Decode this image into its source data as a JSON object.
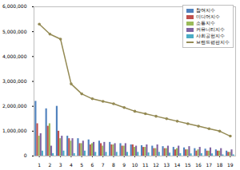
{
  "chart_data": {
    "type": "bar",
    "categories": [
      "1",
      "2",
      "3",
      "4",
      "5",
      "6",
      "7",
      "8",
      "9",
      "10",
      "11",
      "12",
      "13",
      "14",
      "15",
      "16",
      "17",
      "18",
      "19"
    ],
    "series": [
      {
        "name": "참여지수",
        "type": "bar",
        "color": "#4f81bd",
        "values": [
          2200000,
          1900000,
          2000000,
          800000,
          700000,
          650000,
          600000,
          550000,
          500000,
          450000,
          420000,
          400000,
          380000,
          350000,
          330000,
          300000,
          280000,
          250000,
          200000
        ]
      },
      {
        "name": "미디어지수",
        "type": "bar",
        "color": "#c0504d",
        "values": [
          1300000,
          1200000,
          1000000,
          700000,
          500000,
          450000,
          500000,
          450000,
          400000,
          450000,
          350000,
          300000,
          300000,
          250000,
          250000,
          200000,
          200000,
          200000,
          150000
        ]
      },
      {
        "name": "소통지수",
        "type": "bar",
        "color": "#9bbb59",
        "values": [
          800000,
          1300000,
          700000,
          600000,
          500000,
          500000,
          400000,
          450000,
          400000,
          350000,
          350000,
          300000,
          300000,
          300000,
          250000,
          250000,
          200000,
          200000,
          150000
        ]
      },
      {
        "name": "커뮤니티지수",
        "type": "bar",
        "color": "#8064a2",
        "values": [
          900000,
          400000,
          800000,
          700000,
          600000,
          550000,
          550000,
          500000,
          500000,
          400000,
          450000,
          450000,
          400000,
          400000,
          380000,
          350000,
          330000,
          300000,
          250000
        ]
      },
      {
        "name": "사회공헌지수",
        "type": "bar",
        "color": "#4bacc6",
        "values": [
          200000,
          100000,
          200000,
          100000,
          200000,
          150000,
          150000,
          150000,
          150000,
          150000,
          130000,
          150000,
          120000,
          100000,
          90000,
          100000,
          90000,
          50000,
          50000
        ]
      },
      {
        "name": "브랜드평판지수",
        "type": "line",
        "color": "#948a54",
        "marker": "circle",
        "values": [
          5300000,
          4900000,
          4700000,
          2900000,
          2500000,
          2300000,
          2200000,
          2100000,
          1950000,
          1800000,
          1700000,
          1600000,
          1500000,
          1400000,
          1300000,
          1200000,
          1100000,
          1000000,
          800000
        ]
      }
    ],
    "ylim": [
      0,
      6000000
    ],
    "yticks": [
      0,
      {
        "value": 1000000,
        "label": "1,000,000"
      },
      {
        "value": 2000000,
        "label": "2,000,000"
      },
      {
        "value": 3000000,
        "label": "3,000,000"
      },
      {
        "value": 4000000,
        "label": "4,000,000"
      },
      {
        "value": 5000000,
        "label": "5,000,000"
      },
      {
        "value": 6000000,
        "label": "6,000,000"
      }
    ],
    "grid": false,
    "legend": "top-right"
  }
}
